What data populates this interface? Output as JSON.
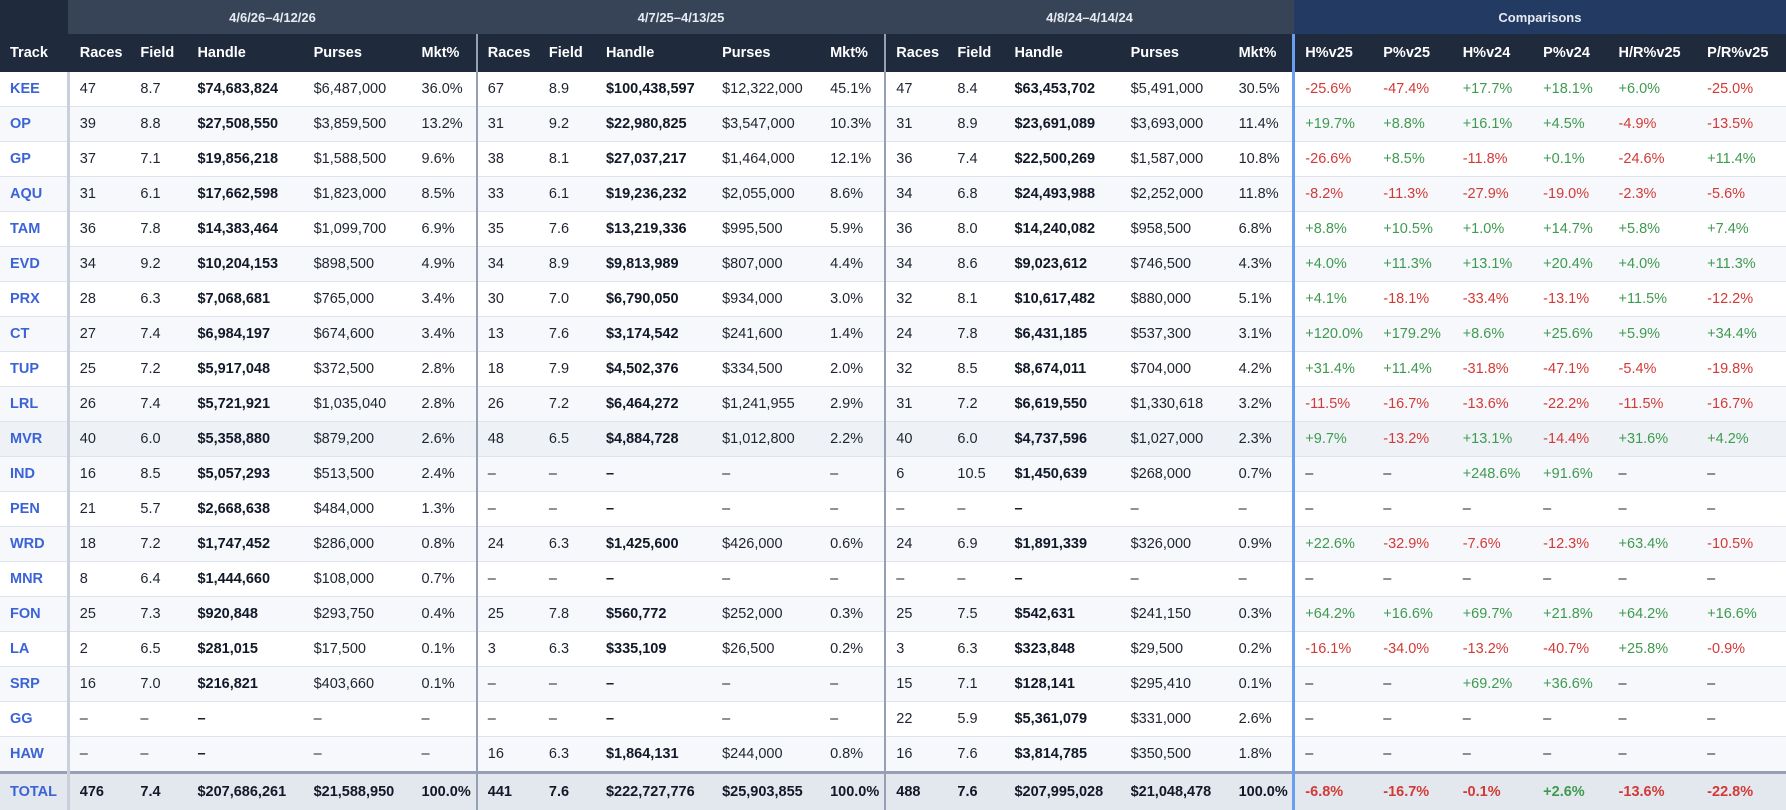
{
  "groups": {
    "blank": "",
    "period1": "4/6/26–4/12/26",
    "period2": "4/7/25–4/13/25",
    "period3": "4/8/24–4/14/24",
    "comparisons": "Comparisons"
  },
  "columns": {
    "track": "Track",
    "period": [
      "Races",
      "Field",
      "Handle",
      "Purses",
      "Mkt%"
    ],
    "comparisons": [
      "H%v25",
      "P%v25",
      "H%v24",
      "P%v24",
      "H/R%v25",
      "P/R%v25"
    ]
  },
  "colors": {
    "positive": "#3f9a4f",
    "negative": "#d23a36",
    "link": "#3b63d6",
    "header_bg": "#1f2a3c",
    "comparison_header_bg": "#233a63"
  },
  "rows": [
    {
      "track": "KEE",
      "p1": [
        "47",
        "8.7",
        "$74,683,824",
        "$6,487,000",
        "36.0%"
      ],
      "p2": [
        "67",
        "8.9",
        "$100,438,597",
        "$12,322,000",
        "45.1%"
      ],
      "p3": [
        "47",
        "8.4",
        "$63,453,702",
        "$5,491,000",
        "30.5%"
      ],
      "cmp": [
        "-25.6%",
        "-47.4%",
        "+17.7%",
        "+18.1%",
        "+6.0%",
        "-25.0%"
      ]
    },
    {
      "track": "OP",
      "p1": [
        "39",
        "8.8",
        "$27,508,550",
        "$3,859,500",
        "13.2%"
      ],
      "p2": [
        "31",
        "9.2",
        "$22,980,825",
        "$3,547,000",
        "10.3%"
      ],
      "p3": [
        "31",
        "8.9",
        "$23,691,089",
        "$3,693,000",
        "11.4%"
      ],
      "cmp": [
        "+19.7%",
        "+8.8%",
        "+16.1%",
        "+4.5%",
        "-4.9%",
        "-13.5%"
      ]
    },
    {
      "track": "GP",
      "p1": [
        "37",
        "7.1",
        "$19,856,218",
        "$1,588,500",
        "9.6%"
      ],
      "p2": [
        "38",
        "8.1",
        "$27,037,217",
        "$1,464,000",
        "12.1%"
      ],
      "p3": [
        "36",
        "7.4",
        "$22,500,269",
        "$1,587,000",
        "10.8%"
      ],
      "cmp": [
        "-26.6%",
        "+8.5%",
        "-11.8%",
        "+0.1%",
        "-24.6%",
        "+11.4%"
      ]
    },
    {
      "track": "AQU",
      "p1": [
        "31",
        "6.1",
        "$17,662,598",
        "$1,823,000",
        "8.5%"
      ],
      "p2": [
        "33",
        "6.1",
        "$19,236,232",
        "$2,055,000",
        "8.6%"
      ],
      "p3": [
        "34",
        "6.8",
        "$24,493,988",
        "$2,252,000",
        "11.8%"
      ],
      "cmp": [
        "-8.2%",
        "-11.3%",
        "-27.9%",
        "-19.0%",
        "-2.3%",
        "-5.6%"
      ]
    },
    {
      "track": "TAM",
      "p1": [
        "36",
        "7.8",
        "$14,383,464",
        "$1,099,700",
        "6.9%"
      ],
      "p2": [
        "35",
        "7.6",
        "$13,219,336",
        "$995,500",
        "5.9%"
      ],
      "p3": [
        "36",
        "8.0",
        "$14,240,082",
        "$958,500",
        "6.8%"
      ],
      "cmp": [
        "+8.8%",
        "+10.5%",
        "+1.0%",
        "+14.7%",
        "+5.8%",
        "+7.4%"
      ]
    },
    {
      "track": "EVD",
      "p1": [
        "34",
        "9.2",
        "$10,204,153",
        "$898,500",
        "4.9%"
      ],
      "p2": [
        "34",
        "8.9",
        "$9,813,989",
        "$807,000",
        "4.4%"
      ],
      "p3": [
        "34",
        "8.6",
        "$9,023,612",
        "$746,500",
        "4.3%"
      ],
      "cmp": [
        "+4.0%",
        "+11.3%",
        "+13.1%",
        "+20.4%",
        "+4.0%",
        "+11.3%"
      ]
    },
    {
      "track": "PRX",
      "p1": [
        "28",
        "6.3",
        "$7,068,681",
        "$765,000",
        "3.4%"
      ],
      "p2": [
        "30",
        "7.0",
        "$6,790,050",
        "$934,000",
        "3.0%"
      ],
      "p3": [
        "32",
        "8.1",
        "$10,617,482",
        "$880,000",
        "5.1%"
      ],
      "cmp": [
        "+4.1%",
        "-18.1%",
        "-33.4%",
        "-13.1%",
        "+11.5%",
        "-12.2%"
      ]
    },
    {
      "track": "CT",
      "p1": [
        "27",
        "7.4",
        "$6,984,197",
        "$674,600",
        "3.4%"
      ],
      "p2": [
        "13",
        "7.6",
        "$3,174,542",
        "$241,600",
        "1.4%"
      ],
      "p3": [
        "24",
        "7.8",
        "$6,431,185",
        "$537,300",
        "3.1%"
      ],
      "cmp": [
        "+120.0%",
        "+179.2%",
        "+8.6%",
        "+25.6%",
        "+5.9%",
        "+34.4%"
      ]
    },
    {
      "track": "TUP",
      "p1": [
        "25",
        "7.2",
        "$5,917,048",
        "$372,500",
        "2.8%"
      ],
      "p2": [
        "18",
        "7.9",
        "$4,502,376",
        "$334,500",
        "2.0%"
      ],
      "p3": [
        "32",
        "8.5",
        "$8,674,011",
        "$704,000",
        "4.2%"
      ],
      "cmp": [
        "+31.4%",
        "+11.4%",
        "-31.8%",
        "-47.1%",
        "-5.4%",
        "-19.8%"
      ]
    },
    {
      "track": "LRL",
      "p1": [
        "26",
        "7.4",
        "$5,721,921",
        "$1,035,040",
        "2.8%"
      ],
      "p2": [
        "26",
        "7.2",
        "$6,464,272",
        "$1,241,955",
        "2.9%"
      ],
      "p3": [
        "31",
        "7.2",
        "$6,619,550",
        "$1,330,618",
        "3.2%"
      ],
      "cmp": [
        "-11.5%",
        "-16.7%",
        "-13.6%",
        "-22.2%",
        "-11.5%",
        "-16.7%"
      ]
    },
    {
      "track": "MVR",
      "highlight": true,
      "p1": [
        "40",
        "6.0",
        "$5,358,880",
        "$879,200",
        "2.6%"
      ],
      "p2": [
        "48",
        "6.5",
        "$4,884,728",
        "$1,012,800",
        "2.2%"
      ],
      "p3": [
        "40",
        "6.0",
        "$4,737,596",
        "$1,027,000",
        "2.3%"
      ],
      "cmp": [
        "+9.7%",
        "-13.2%",
        "+13.1%",
        "-14.4%",
        "+31.6%",
        "+4.2%"
      ]
    },
    {
      "track": "IND",
      "p1": [
        "16",
        "8.5",
        "$5,057,293",
        "$513,500",
        "2.4%"
      ],
      "p2": [
        "–",
        "–",
        "–",
        "–",
        "–"
      ],
      "p3": [
        "6",
        "10.5",
        "$1,450,639",
        "$268,000",
        "0.7%"
      ],
      "cmp": [
        "–",
        "–",
        "+248.6%",
        "+91.6%",
        "–",
        "–"
      ]
    },
    {
      "track": "PEN",
      "p1": [
        "21",
        "5.7",
        "$2,668,638",
        "$484,000",
        "1.3%"
      ],
      "p2": [
        "–",
        "–",
        "–",
        "–",
        "–"
      ],
      "p3": [
        "–",
        "–",
        "–",
        "–",
        "–"
      ],
      "cmp": [
        "–",
        "–",
        "–",
        "–",
        "–",
        "–"
      ]
    },
    {
      "track": "WRD",
      "p1": [
        "18",
        "7.2",
        "$1,747,452",
        "$286,000",
        "0.8%"
      ],
      "p2": [
        "24",
        "6.3",
        "$1,425,600",
        "$426,000",
        "0.6%"
      ],
      "p3": [
        "24",
        "6.9",
        "$1,891,339",
        "$326,000",
        "0.9%"
      ],
      "cmp": [
        "+22.6%",
        "-32.9%",
        "-7.6%",
        "-12.3%",
        "+63.4%",
        "-10.5%"
      ]
    },
    {
      "track": "MNR",
      "p1": [
        "8",
        "6.4",
        "$1,444,660",
        "$108,000",
        "0.7%"
      ],
      "p2": [
        "–",
        "–",
        "–",
        "–",
        "–"
      ],
      "p3": [
        "–",
        "–",
        "–",
        "–",
        "–"
      ],
      "cmp": [
        "–",
        "–",
        "–",
        "–",
        "–",
        "–"
      ]
    },
    {
      "track": "FON",
      "p1": [
        "25",
        "7.3",
        "$920,848",
        "$293,750",
        "0.4%"
      ],
      "p2": [
        "25",
        "7.8",
        "$560,772",
        "$252,000",
        "0.3%"
      ],
      "p3": [
        "25",
        "7.5",
        "$542,631",
        "$241,150",
        "0.3%"
      ],
      "cmp": [
        "+64.2%",
        "+16.6%",
        "+69.7%",
        "+21.8%",
        "+64.2%",
        "+16.6%"
      ]
    },
    {
      "track": "LA",
      "p1": [
        "2",
        "6.5",
        "$281,015",
        "$17,500",
        "0.1%"
      ],
      "p2": [
        "3",
        "6.3",
        "$335,109",
        "$26,500",
        "0.2%"
      ],
      "p3": [
        "3",
        "6.3",
        "$323,848",
        "$29,500",
        "0.2%"
      ],
      "cmp": [
        "-16.1%",
        "-34.0%",
        "-13.2%",
        "-40.7%",
        "+25.8%",
        "-0.9%"
      ]
    },
    {
      "track": "SRP",
      "p1": [
        "16",
        "7.0",
        "$216,821",
        "$403,660",
        "0.1%"
      ],
      "p2": [
        "–",
        "–",
        "–",
        "–",
        "–"
      ],
      "p3": [
        "15",
        "7.1",
        "$128,141",
        "$295,410",
        "0.1%"
      ],
      "cmp": [
        "–",
        "–",
        "+69.2%",
        "+36.6%",
        "–",
        "–"
      ]
    },
    {
      "track": "GG",
      "p1": [
        "–",
        "–",
        "–",
        "–",
        "–"
      ],
      "p2": [
        "–",
        "–",
        "–",
        "–",
        "–"
      ],
      "p3": [
        "22",
        "5.9",
        "$5,361,079",
        "$331,000",
        "2.6%"
      ],
      "cmp": [
        "–",
        "–",
        "–",
        "–",
        "–",
        "–"
      ]
    },
    {
      "track": "HAW",
      "p1": [
        "–",
        "–",
        "–",
        "–",
        "–"
      ],
      "p2": [
        "16",
        "6.3",
        "$1,864,131",
        "$244,000",
        "0.8%"
      ],
      "p3": [
        "16",
        "7.6",
        "$3,814,785",
        "$350,500",
        "1.8%"
      ],
      "cmp": [
        "–",
        "–",
        "–",
        "–",
        "–",
        "–"
      ]
    }
  ],
  "total": {
    "track": "TOTAL",
    "p1": [
      "476",
      "7.4",
      "$207,686,261",
      "$21,588,950",
      "100.0%"
    ],
    "p2": [
      "441",
      "7.6",
      "$222,727,776",
      "$25,903,855",
      "100.0%"
    ],
    "p3": [
      "488",
      "7.6",
      "$207,995,028",
      "$21,048,478",
      "100.0%"
    ],
    "cmp": [
      "-6.8%",
      "-16.7%",
      "-0.1%",
      "+2.6%",
      "-13.6%",
      "-22.8%"
    ]
  }
}
